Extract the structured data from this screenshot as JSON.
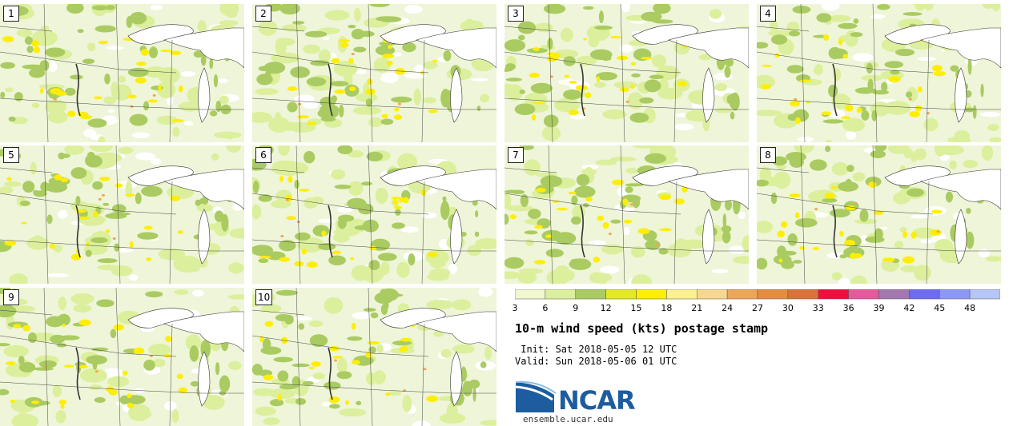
{
  "panels": [
    {
      "label": "1"
    },
    {
      "label": "2"
    },
    {
      "label": "3"
    },
    {
      "label": "4"
    },
    {
      "label": "5"
    },
    {
      "label": "6"
    },
    {
      "label": "7"
    },
    {
      "label": "8"
    },
    {
      "label": "9"
    },
    {
      "label": "10"
    }
  ],
  "colorbar": {
    "ticks": [
      "3",
      "6",
      "9",
      "12",
      "15",
      "18",
      "21",
      "24",
      "27",
      "30",
      "33",
      "36",
      "39",
      "42",
      "45",
      "48"
    ],
    "colors": [
      "#f1f7cf",
      "#dcef9c",
      "#aacb61",
      "#e3ea24",
      "#fdee06",
      "#fdf090",
      "#f8d88f",
      "#eda657",
      "#e58d3e",
      "#da7339",
      "#ee0f3c",
      "#e55a9d",
      "#a377b0",
      "#6d6cf0",
      "#8d98f6",
      "#b7c6f8"
    ]
  },
  "title": "10-m wind speed (kts) postage stamp",
  "init": " Init: Sat 2018-05-05 12 UTC",
  "valid": "Valid: Sun 2018-05-06 01 UTC",
  "logo": {
    "name": "NCAR",
    "site": "ensemble.ucar.edu"
  }
}
